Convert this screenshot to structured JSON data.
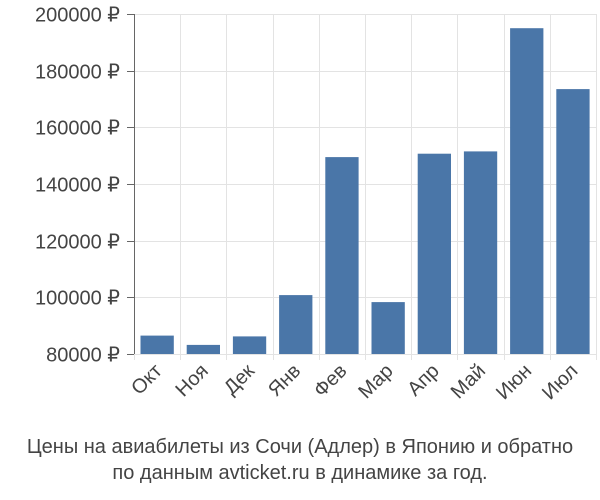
{
  "chart_data": {
    "type": "bar",
    "categories": [
      "Окт",
      "Ноя",
      "Дек",
      "Янв",
      "Фев",
      "Мар",
      "Апр",
      "Май",
      "Июн",
      "Июл"
    ],
    "values": [
      86500,
      83200,
      86200,
      100800,
      149500,
      98300,
      150700,
      151500,
      195000,
      173500
    ],
    "ylim": [
      80000,
      200000
    ],
    "yticks": [
      80000,
      100000,
      120000,
      140000,
      160000,
      180000,
      200000
    ],
    "ytick_labels": [
      "80000 ₽",
      "100000 ₽",
      "120000 ₽",
      "140000 ₽",
      "160000 ₽",
      "180000 ₽",
      "200000 ₽"
    ],
    "bar_color": "#4a76a8",
    "grid": true,
    "caption": [
      "Цены на авиабилеты из Сочи (Адлер) в Японию и обратно",
      "по данным avticket.ru в динамике за год."
    ]
  }
}
